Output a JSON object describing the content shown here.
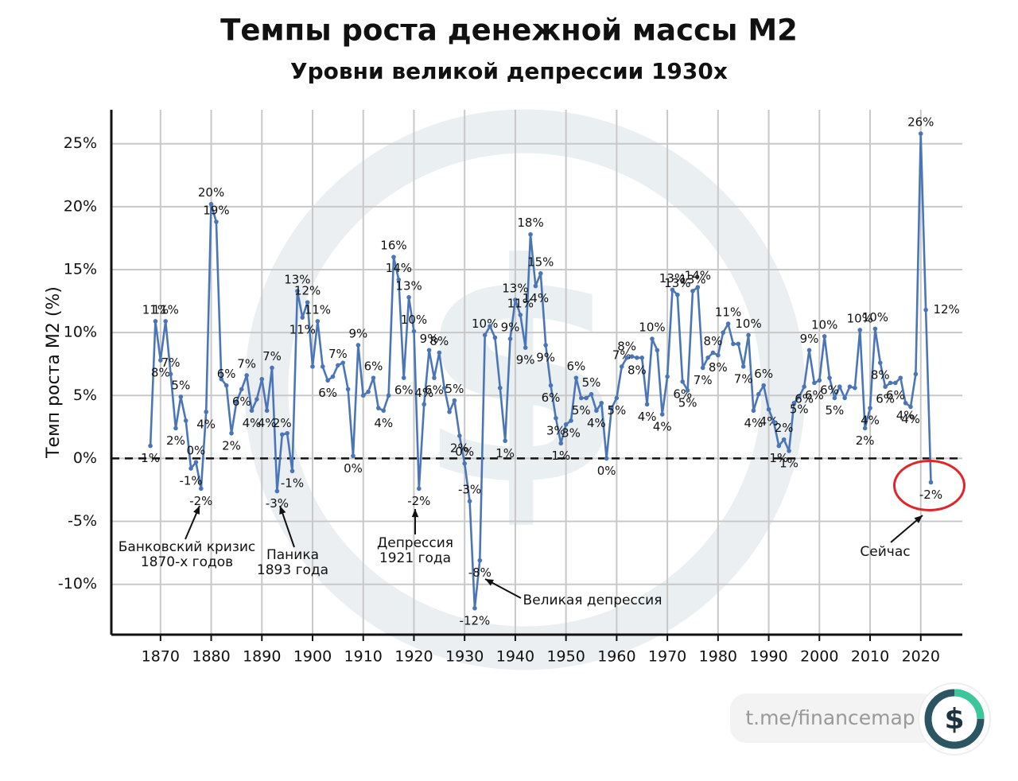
{
  "chart_data": {
    "type": "line",
    "title": "Темпы роста денежной массы М2",
    "subtitle": "Уровни великой депрессии 1930х",
    "y_label": "Темп роста М2 (%)",
    "watermark": "t.me/financemap",
    "annotations": [
      {
        "text": [
          "Банковский кризис",
          "1870-х годов"
        ]
      },
      {
        "text": [
          "Паника",
          "1893 года"
        ]
      },
      {
        "text": [
          "Депрессия",
          "1921 года"
        ]
      },
      {
        "text": [
          "Великая депрессия"
        ]
      },
      {
        "text": [
          "Сейчас"
        ]
      }
    ],
    "x": [
      1868,
      1869,
      1870,
      1871,
      1872,
      1873,
      1874,
      1875,
      1876,
      1877,
      1878,
      1879,
      1880,
      1881,
      1882,
      1883,
      1884,
      1885,
      1886,
      1887,
      1888,
      1889,
      1890,
      1891,
      1892,
      1893,
      1894,
      1895,
      1896,
      1897,
      1898,
      1899,
      1900,
      1901,
      1902,
      1903,
      1904,
      1905,
      1906,
      1907,
      1908,
      1909,
      1910,
      1911,
      1912,
      1913,
      1914,
      1915,
      1916,
      1917,
      1918,
      1919,
      1920,
      1921,
      1922,
      1923,
      1924,
      1925,
      1926,
      1927,
      1928,
      1929,
      1930,
      1931,
      1932,
      1933,
      1934,
      1935,
      1936,
      1937,
      1938,
      1939,
      1940,
      1941,
      1942,
      1943,
      1944,
      1945,
      1946,
      1947,
      1948,
      1949,
      1950,
      1951,
      1952,
      1953,
      1954,
      1955,
      1956,
      1957,
      1958,
      1959,
      1960,
      1961,
      1962,
      1963,
      1964,
      1965,
      1966,
      1967,
      1968,
      1969,
      1970,
      1971,
      1972,
      1973,
      1974,
      1975,
      1976,
      1977,
      1978,
      1979,
      1980,
      1981,
      1982,
      1983,
      1984,
      1985,
      1986,
      1987,
      1988,
      1989,
      1990,
      1991,
      1992,
      1993,
      1994,
      1995,
      1996,
      1997,
      1998,
      1999,
      2000,
      2001,
      2002,
      2003,
      2004,
      2005,
      2006,
      2007,
      2008,
      2009,
      2010,
      2011,
      2012,
      2013,
      2014,
      2015,
      2016,
      2017,
      2018,
      2019,
      2020,
      2021,
      2022
    ],
    "series": [
      {
        "name": "M2",
        "color": "#4a76b8",
        "values": [
          1.0,
          10.9,
          7.8,
          10.9,
          6.7,
          2.4,
          4.9,
          3.0,
          -0.8,
          -0.3,
          -2.4,
          3.7,
          20.2,
          18.8,
          6.3,
          5.8,
          2.0,
          4.5,
          5.5,
          6.6,
          3.8,
          4.7,
          6.3,
          3.8,
          7.2,
          -2.6,
          1.9,
          2.0,
          -1.0,
          13.3,
          11.2,
          12.4,
          7.3,
          10.9,
          7.3,
          6.2,
          6.5,
          7.4,
          7.6,
          5.5,
          0.2,
          9.0,
          5.0,
          5.3,
          6.4,
          4.0,
          3.8,
          5.0,
          16.0,
          14.2,
          6.4,
          12.8,
          10.1,
          -2.4,
          4.3,
          8.6,
          6.4,
          8.4,
          5.6,
          3.7,
          4.6,
          1.8,
          -0.4,
          -3.4,
          -11.9,
          -8.1,
          9.8,
          10.5,
          9.6,
          5.6,
          1.4,
          9.5,
          12.6,
          11.4,
          8.8,
          17.8,
          13.7,
          14.7,
          9.0,
          5.8,
          3.2,
          1.2,
          2.7,
          3.0,
          6.4,
          4.8,
          4.8,
          5.1,
          3.8,
          4.4,
          0.0,
          4.0,
          4.8,
          7.3,
          8.0,
          8.1,
          8.0,
          8.0,
          4.3,
          9.5,
          8.6,
          3.5,
          6.5,
          13.4,
          13.0,
          6.1,
          5.4,
          13.3,
          13.6,
          7.2,
          8.0,
          8.4,
          8.2,
          10.0,
          10.7,
          9.1,
          9.1,
          7.3,
          9.8,
          3.8,
          5.1,
          5.8,
          3.9,
          2.9,
          1.0,
          1.5,
          0.6,
          4.4,
          4.9,
          5.7,
          8.6,
          6.0,
          6.2,
          9.7,
          6.4,
          4.8,
          5.7,
          4.8,
          5.7,
          5.6,
          10.2,
          2.4,
          4.0,
          10.3,
          7.6,
          5.7,
          6.0,
          6.0,
          6.4,
          4.4,
          4.1,
          6.7,
          25.8,
          11.8,
          -1.9
        ],
        "value_labels": [
          "1%",
          "11%",
          "8%",
          "11%",
          "7%",
          "2%",
          "5%",
          null,
          "-1%",
          "0%",
          "-2%",
          "4%",
          "20%",
          "19%",
          null,
          "6%",
          "2%",
          null,
          "6%",
          "7%",
          "4%",
          null,
          null,
          "4%",
          "7%",
          "-3%",
          "2%",
          null,
          "-1%",
          "13%",
          "11%",
          "12%",
          null,
          "11%",
          null,
          "6%",
          null,
          "7%",
          null,
          null,
          "0%",
          "9%",
          null,
          null,
          "6%",
          null,
          "4%",
          null,
          "16%",
          "14%",
          "6%",
          "13%",
          "10%",
          "-2%",
          "4%",
          "9%",
          "6%",
          "8%",
          null,
          null,
          "5%",
          "2%",
          "0%",
          "-3%",
          "-12%",
          "-8%",
          "10%",
          null,
          null,
          null,
          "1%",
          "9%",
          "13%",
          "11%",
          "9%",
          "18%",
          "14%",
          "15%",
          "9%",
          "6%",
          "3%",
          "1%",
          null,
          "3%",
          "6%",
          "5%",
          null,
          "5%",
          "4%",
          null,
          "0%",
          null,
          "5%",
          "7%",
          "8%",
          null,
          "8%",
          null,
          "4%",
          "10%",
          null,
          "4%",
          null,
          "13%",
          "13%",
          "6%",
          "5%",
          "13%",
          "14%",
          "7%",
          null,
          "8%",
          "8%",
          null,
          "11%",
          null,
          null,
          "7%",
          "10%",
          "4%",
          null,
          "6%",
          "4%",
          null,
          "1%",
          "2%",
          "1%",
          null,
          "5%",
          "6%",
          "9%",
          "6%",
          null,
          "10%",
          "6%",
          "5%",
          null,
          null,
          null,
          null,
          "10%",
          "2%",
          "4%",
          "10%",
          "8%",
          "6%",
          null,
          "6%",
          null,
          "4%",
          "4%",
          null,
          "26%",
          "12%",
          "-2%"
        ]
      }
    ],
    "xlim": [
      1860.3,
      2028.2
    ],
    "xticks": [
      1870,
      1880,
      1890,
      1900,
      1910,
      1920,
      1930,
      1940,
      1950,
      1960,
      1970,
      1980,
      1990,
      2000,
      2010,
      2020
    ],
    "ylim": [
      -14,
      27.7
    ],
    "yticks": [
      {
        "value": -10,
        "label": "-10%"
      },
      {
        "value": -5,
        "label": "-5%"
      },
      {
        "value": 0,
        "label": "0%"
      },
      {
        "value": 5,
        "label": "5%"
      },
      {
        "value": 10,
        "label": "10%"
      },
      {
        "value": 15,
        "label": "15%"
      },
      {
        "value": 20,
        "label": "20%"
      },
      {
        "value": 25,
        "label": "25%"
      }
    ],
    "grid": true,
    "zero_line": "dashed"
  }
}
